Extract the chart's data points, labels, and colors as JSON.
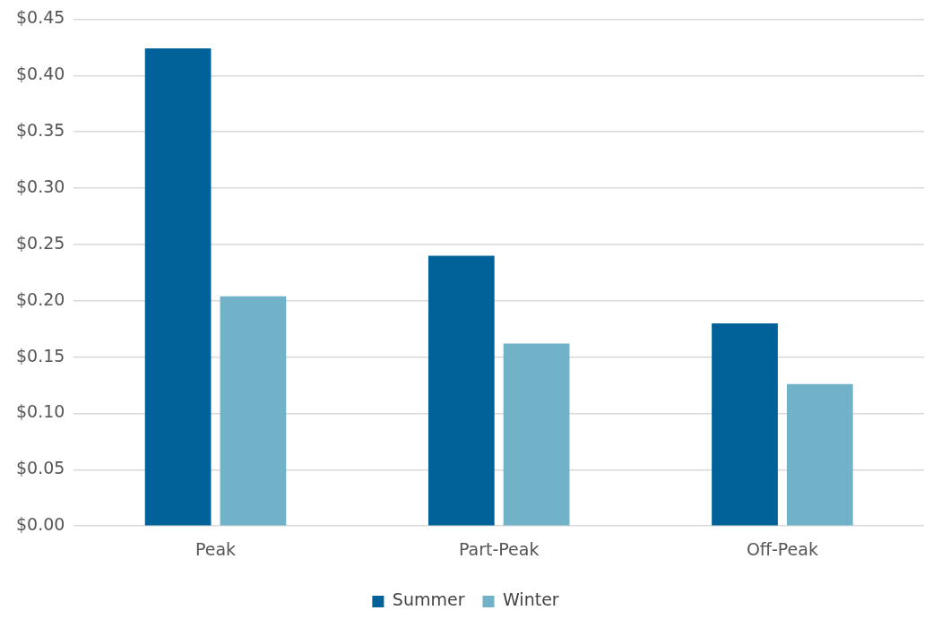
{
  "chart_data": {
    "type": "bar",
    "categories": [
      "Peak",
      "Part-Peak",
      "Off-Peak"
    ],
    "series": [
      {
        "name": "Summer",
        "color": "#006298",
        "values": [
          0.424,
          0.24,
          0.18
        ]
      },
      {
        "name": "Winter",
        "color": "#71b2c9",
        "values": [
          0.204,
          0.162,
          0.126
        ]
      }
    ],
    "ylim": [
      0,
      0.45
    ],
    "yticks": [
      {
        "value": 0,
        "label": "$0.00"
      },
      {
        "value": 0.05,
        "label": "$0.05"
      },
      {
        "value": 0.1,
        "label": "$0.10"
      },
      {
        "value": 0.15,
        "label": "$0.15"
      },
      {
        "value": 0.2,
        "label": "$0.20"
      },
      {
        "value": 0.25,
        "label": "$0.25"
      },
      {
        "value": 0.3,
        "label": "$0.30"
      },
      {
        "value": 0.35,
        "label": "$0.35"
      },
      {
        "value": 0.4,
        "label": "$0.40"
      },
      {
        "value": 0.45,
        "label": "$0.45"
      }
    ],
    "grid": "y",
    "legend": "bottom"
  }
}
